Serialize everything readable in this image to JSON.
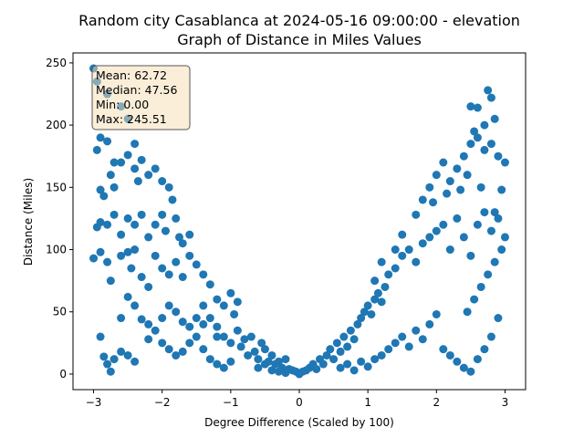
{
  "chart_data": {
    "type": "scatter",
    "title": "Random city Casablanca at 2024-05-16 09:00:00  - elevation",
    "subtitle": "Graph of Distance in Miles Values",
    "xlabel": "Degree Difference (Scaled by 100)",
    "ylabel": "Distance (Miles)",
    "xlim": [
      -3.3,
      3.3
    ],
    "ylim": [
      -12.5,
      258.0
    ],
    "xticks": [
      -3,
      -2,
      -1,
      0,
      1,
      2,
      3
    ],
    "yticks": [
      0,
      50,
      100,
      150,
      200,
      250
    ],
    "grid": false,
    "marker_color": "#1f77b4",
    "stats": {
      "mean": "Mean: 62.72",
      "median": "Median: 47.56",
      "min": "Min: 0.00",
      "max": "Max: 245.51"
    },
    "stats_box_color": "#f5deb3",
    "points": [
      [
        -3.0,
        245.5
      ],
      [
        -2.95,
        235
      ],
      [
        -2.8,
        225
      ],
      [
        -2.6,
        215
      ],
      [
        -2.5,
        205
      ],
      [
        -2.9,
        190
      ],
      [
        -2.8,
        187
      ],
      [
        -2.7,
        170
      ],
      [
        -2.95,
        180
      ],
      [
        -2.9,
        148
      ],
      [
        -2.85,
        143
      ],
      [
        -2.75,
        160
      ],
      [
        -2.7,
        150
      ],
      [
        -2.6,
        170
      ],
      [
        -2.5,
        176
      ],
      [
        -2.4,
        185
      ],
      [
        -2.4,
        165
      ],
      [
        -2.35,
        155
      ],
      [
        -2.3,
        172
      ],
      [
        -2.2,
        160
      ],
      [
        -2.1,
        165
      ],
      [
        -2.0,
        155
      ],
      [
        -1.9,
        150
      ],
      [
        -1.85,
        140
      ],
      [
        -2.95,
        118
      ],
      [
        -2.9,
        122
      ],
      [
        -2.8,
        120
      ],
      [
        -2.7,
        128
      ],
      [
        -2.6,
        112
      ],
      [
        -2.5,
        125
      ],
      [
        -2.4,
        120
      ],
      [
        -2.3,
        128
      ],
      [
        -2.2,
        110
      ],
      [
        -2.1,
        120
      ],
      [
        -2.0,
        128
      ],
      [
        -1.95,
        115
      ],
      [
        -1.8,
        125
      ],
      [
        -1.75,
        110
      ],
      [
        -1.7,
        105
      ],
      [
        -1.6,
        112
      ],
      [
        -3.0,
        93
      ],
      [
        -2.9,
        98
      ],
      [
        -2.8,
        90
      ],
      [
        -2.75,
        75
      ],
      [
        -2.6,
        95
      ],
      [
        -2.5,
        98
      ],
      [
        -2.45,
        85
      ],
      [
        -2.4,
        100
      ],
      [
        -2.3,
        78
      ],
      [
        -2.2,
        70
      ],
      [
        -2.1,
        95
      ],
      [
        -2.0,
        85
      ],
      [
        -1.9,
        80
      ],
      [
        -1.8,
        90
      ],
      [
        -1.7,
        78
      ],
      [
        -1.6,
        95
      ],
      [
        -1.5,
        88
      ],
      [
        -1.4,
        80
      ],
      [
        -1.3,
        72
      ],
      [
        -1.2,
        60
      ],
      [
        -1.1,
        55
      ],
      [
        -1.0,
        65
      ],
      [
        -0.95,
        48
      ],
      [
        -0.9,
        58
      ],
      [
        -2.9,
        30
      ],
      [
        -2.85,
        14
      ],
      [
        -2.8,
        8
      ],
      [
        -2.75,
        2
      ],
      [
        -2.7,
        12
      ],
      [
        -2.6,
        18
      ],
      [
        -2.5,
        15
      ],
      [
        -2.4,
        10
      ],
      [
        -2.5,
        62
      ],
      [
        -2.6,
        45
      ],
      [
        -2.4,
        55
      ],
      [
        -2.3,
        44
      ],
      [
        -2.2,
        40
      ],
      [
        -2.1,
        35
      ],
      [
        -2.0,
        25
      ],
      [
        -1.9,
        20
      ],
      [
        -1.8,
        15
      ],
      [
        -1.7,
        18
      ],
      [
        -1.6,
        25
      ],
      [
        -1.5,
        30
      ],
      [
        -1.4,
        20
      ],
      [
        -1.3,
        12
      ],
      [
        -1.2,
        8
      ],
      [
        -1.1,
        5
      ],
      [
        -2.2,
        28
      ],
      [
        -2.0,
        45
      ],
      [
        -1.9,
        55
      ],
      [
        -1.8,
        50
      ],
      [
        -1.7,
        42
      ],
      [
        -1.6,
        38
      ],
      [
        -1.5,
        45
      ],
      [
        -1.4,
        55
      ],
      [
        -1.3,
        45
      ],
      [
        -1.2,
        38
      ],
      [
        -1.1,
        30
      ],
      [
        -1.0,
        25
      ],
      [
        -0.9,
        35
      ],
      [
        -0.85,
        22
      ],
      [
        -0.8,
        28
      ],
      [
        -0.75,
        15
      ],
      [
        -0.7,
        30
      ],
      [
        -0.65,
        18
      ],
      [
        -0.6,
        12
      ],
      [
        -0.55,
        25
      ],
      [
        -0.5,
        20
      ],
      [
        -0.45,
        10
      ],
      [
        -0.4,
        15
      ],
      [
        -0.35,
        8
      ],
      [
        -0.3,
        10
      ],
      [
        -0.25,
        5
      ],
      [
        -0.2,
        12
      ],
      [
        -0.15,
        4
      ],
      [
        -0.1,
        3
      ],
      [
        -0.05,
        2
      ],
      [
        0.0,
        0
      ],
      [
        0.05,
        2
      ],
      [
        -0.6,
        5
      ],
      [
        -0.5,
        8
      ],
      [
        -0.4,
        3
      ],
      [
        -0.3,
        2
      ],
      [
        -0.2,
        1
      ],
      [
        -1.0,
        10
      ],
      [
        -1.2,
        30
      ],
      [
        -1.4,
        40
      ],
      [
        0.1,
        3
      ],
      [
        0.15,
        5
      ],
      [
        0.2,
        8
      ],
      [
        0.25,
        4
      ],
      [
        0.3,
        12
      ],
      [
        0.35,
        8
      ],
      [
        0.4,
        15
      ],
      [
        0.45,
        20
      ],
      [
        0.5,
        12
      ],
      [
        0.55,
        25
      ],
      [
        0.6,
        18
      ],
      [
        0.65,
        30
      ],
      [
        0.7,
        22
      ],
      [
        0.75,
        35
      ],
      [
        0.8,
        28
      ],
      [
        0.85,
        40
      ],
      [
        0.9,
        45
      ],
      [
        0.95,
        50
      ],
      [
        1.0,
        55
      ],
      [
        1.05,
        48
      ],
      [
        1.1,
        60
      ],
      [
        1.15,
        65
      ],
      [
        1.2,
        58
      ],
      [
        1.25,
        70
      ],
      [
        0.6,
        5
      ],
      [
        0.7,
        8
      ],
      [
        0.8,
        3
      ],
      [
        0.9,
        10
      ],
      [
        1.0,
        6
      ],
      [
        1.1,
        12
      ],
      [
        1.2,
        15
      ],
      [
        1.3,
        20
      ],
      [
        1.4,
        25
      ],
      [
        1.5,
        30
      ],
      [
        1.6,
        22
      ],
      [
        1.7,
        35
      ],
      [
        1.8,
        28
      ],
      [
        1.9,
        40
      ],
      [
        2.0,
        48
      ],
      [
        2.1,
        20
      ],
      [
        2.2,
        15
      ],
      [
        2.3,
        10
      ],
      [
        2.4,
        5
      ],
      [
        2.5,
        2
      ],
      [
        2.6,
        12
      ],
      [
        2.7,
        20
      ],
      [
        2.8,
        30
      ],
      [
        2.9,
        45
      ],
      [
        1.3,
        80
      ],
      [
        1.4,
        85
      ],
      [
        1.5,
        95
      ],
      [
        1.6,
        100
      ],
      [
        1.7,
        90
      ],
      [
        1.8,
        105
      ],
      [
        1.9,
        110
      ],
      [
        2.0,
        115
      ],
      [
        2.1,
        120
      ],
      [
        2.2,
        100
      ],
      [
        2.3,
        125
      ],
      [
        2.4,
        110
      ],
      [
        2.5,
        95
      ],
      [
        2.6,
        120
      ],
      [
        2.7,
        130
      ],
      [
        2.8,
        115
      ],
      [
        2.9,
        125
      ],
      [
        3.0,
        110
      ],
      [
        2.95,
        100
      ],
      [
        2.85,
        90
      ],
      [
        2.75,
        80
      ],
      [
        2.65,
        70
      ],
      [
        2.55,
        60
      ],
      [
        2.45,
        50
      ],
      [
        1.8,
        140
      ],
      [
        1.9,
        150
      ],
      [
        2.0,
        160
      ],
      [
        2.1,
        170
      ],
      [
        2.2,
        155
      ],
      [
        2.3,
        165
      ],
      [
        2.4,
        175
      ],
      [
        2.5,
        185
      ],
      [
        2.6,
        190
      ],
      [
        2.7,
        180
      ],
      [
        2.8,
        185
      ],
      [
        2.9,
        175
      ],
      [
        3.0,
        170
      ],
      [
        2.95,
        148
      ],
      [
        2.85,
        130
      ],
      [
        2.65,
        150
      ],
      [
        2.5,
        215
      ],
      [
        2.6,
        214
      ],
      [
        2.75,
        228
      ],
      [
        2.8,
        222
      ],
      [
        2.85,
        205
      ],
      [
        2.7,
        200
      ],
      [
        2.55,
        195
      ],
      [
        2.45,
        160
      ],
      [
        2.35,
        148
      ],
      [
        2.15,
        145
      ],
      [
        1.95,
        138
      ],
      [
        1.7,
        128
      ],
      [
        1.5,
        112
      ],
      [
        1.4,
        100
      ],
      [
        1.2,
        90
      ],
      [
        1.1,
        75
      ]
    ]
  }
}
